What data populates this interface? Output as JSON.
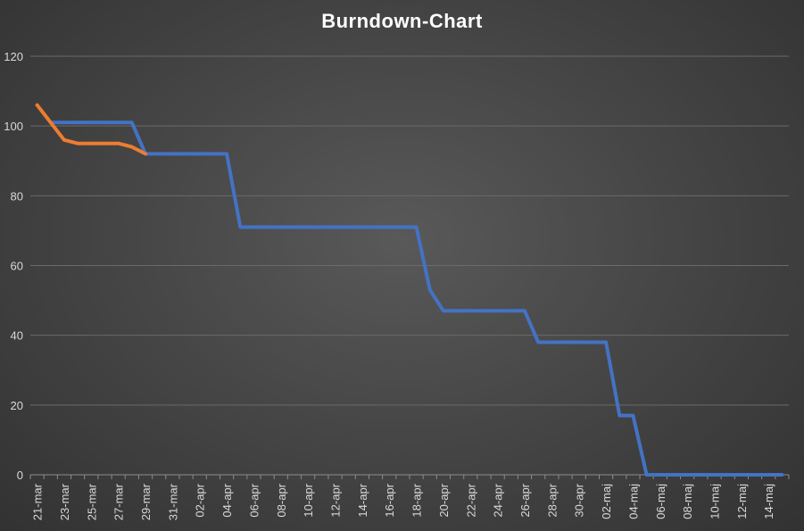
{
  "chart_data": {
    "type": "line",
    "title": "Burndown-Chart",
    "xlabel": "",
    "ylabel": "",
    "ylim": [
      0,
      120
    ],
    "yticks": [
      0,
      20,
      40,
      60,
      80,
      100,
      120
    ],
    "grid": true,
    "legend": "none",
    "x_start": "2019-03-21",
    "x_end": "2019-05-15",
    "xtick_labels": [
      "21-mar",
      "23-mar",
      "25-mar",
      "27-mar",
      "29-mar",
      "31-mar",
      "02-apr",
      "04-apr",
      "06-apr",
      "08-apr",
      "10-apr",
      "12-apr",
      "14-apr",
      "16-apr",
      "18-apr",
      "20-apr",
      "22-apr",
      "24-apr",
      "26-apr",
      "28-apr",
      "30-apr",
      "02-maj",
      "04-maj",
      "06-maj",
      "08-maj",
      "10-maj",
      "12-maj",
      "14-maj"
    ],
    "series": [
      {
        "color": "#4472c4",
        "points": [
          {
            "x": "2019-03-22",
            "y": 101
          },
          {
            "x": "2019-03-28",
            "y": 101
          },
          {
            "x": "2019-03-29",
            "y": 92
          },
          {
            "x": "2019-04-04",
            "y": 92
          },
          {
            "x": "2019-04-05",
            "y": 71
          },
          {
            "x": "2019-04-18",
            "y": 71
          },
          {
            "x": "2019-04-19",
            "y": 53
          },
          {
            "x": "2019-04-20",
            "y": 47
          },
          {
            "x": "2019-04-26",
            "y": 47
          },
          {
            "x": "2019-04-27",
            "y": 38
          },
          {
            "x": "2019-05-02",
            "y": 38
          },
          {
            "x": "2019-05-03",
            "y": 17
          },
          {
            "x": "2019-05-04",
            "y": 17
          },
          {
            "x": "2019-05-05",
            "y": 0
          },
          {
            "x": "2019-05-15",
            "y": 0
          }
        ]
      },
      {
        "color": "#ed7d31",
        "points": [
          {
            "x": "2019-03-21",
            "y": 106
          },
          {
            "x": "2019-03-23",
            "y": 96
          },
          {
            "x": "2019-03-24",
            "y": 95
          },
          {
            "x": "2019-03-27",
            "y": 95
          },
          {
            "x": "2019-03-28",
            "y": 94
          },
          {
            "x": "2019-03-29",
            "y": 92
          }
        ]
      }
    ]
  }
}
